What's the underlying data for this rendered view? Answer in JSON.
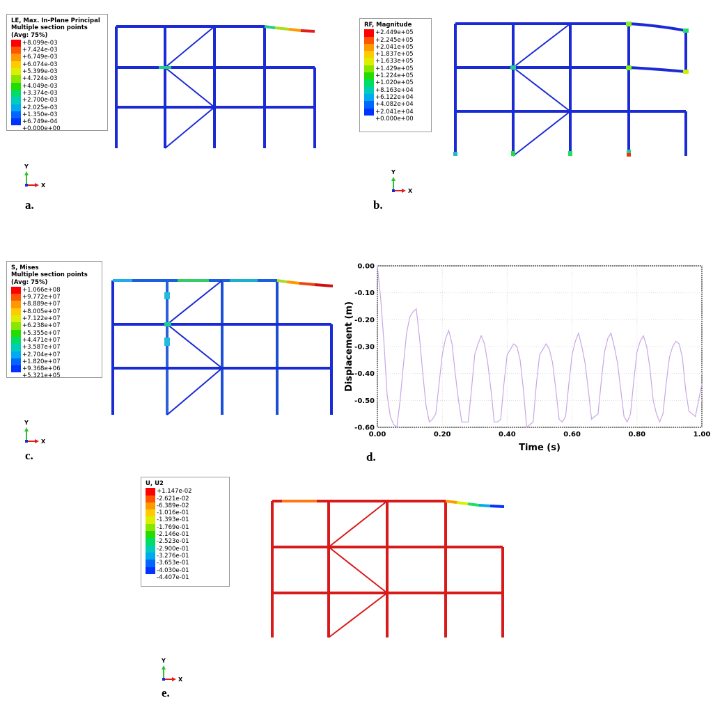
{
  "panels": {
    "a": {
      "label": "a.",
      "legend": {
        "title_lines": [
          "LE, Max. In-Plane Principal",
          "Multiple section points",
          "(Avg: 75%)"
        ],
        "values": [
          "+8.099e-03",
          "+7.424e-03",
          "+6.749e-03",
          "+6.074e-03",
          "+5.399e-03",
          "+4.724e-03",
          "+4.049e-03",
          "+3.374e-03",
          "+2.700e-03",
          "+2.025e-03",
          "+1.350e-03",
          "+6.749e-04",
          "+0.000e+00"
        ]
      },
      "triad": {
        "y": "Y",
        "x": "X"
      }
    },
    "b": {
      "label": "b.",
      "legend": {
        "title_lines": [
          "RF, Magnitude"
        ],
        "values": [
          "+2.449e+05",
          "+2.245e+05",
          "+2.041e+05",
          "+1.837e+05",
          "+1.633e+05",
          "+1.429e+05",
          "+1.224e+05",
          "+1.020e+05",
          "+8.163e+04",
          "+6.122e+04",
          "+4.082e+04",
          "+2.041e+04",
          "+0.000e+00"
        ]
      },
      "triad": {
        "y": "Y",
        "x": "X"
      }
    },
    "c": {
      "label": "c.",
      "legend": {
        "title_lines": [
          "S, Mises",
          "Multiple section points",
          "(Avg: 75%)"
        ],
        "values": [
          "+1.066e+08",
          "+9.772e+07",
          "+8.889e+07",
          "+8.005e+07",
          "+7.122e+07",
          "+6.238e+07",
          "+5.355e+07",
          "+4.471e+07",
          "+3.587e+07",
          "+2.704e+07",
          "+1.820e+07",
          "+9.368e+06",
          "+5.321e+05"
        ]
      },
      "triad": {
        "y": "Y",
        "x": "X"
      }
    },
    "d": {
      "label": "d."
    },
    "e": {
      "label": "e.",
      "legend": {
        "title_lines": [
          "U, U2"
        ],
        "values": [
          "+1.147e-02",
          "-2.621e-02",
          "-6.389e-02",
          "-1.016e-01",
          "-1.393e-01",
          "-1.769e-01",
          "-2.146e-01",
          "-2.523e-01",
          "-2.900e-01",
          "-3.276e-01",
          "-3.653e-01",
          "-4.030e-01",
          "-4.407e-01"
        ]
      },
      "triad": {
        "y": "Y",
        "x": "X"
      }
    }
  },
  "colors": {
    "contour_scale": [
      "#ff0000",
      "#ff5500",
      "#ff9900",
      "#ffcc00",
      "#ddee00",
      "#88e600",
      "#22dd00",
      "#00dd66",
      "#00ccbb",
      "#00aaee",
      "#0066ff",
      "#0033ff",
      "#0000ff"
    ],
    "member_low": "#1a2bd6",
    "member_high": "#d81a1a",
    "trace": "#c9a6e6",
    "triad_y": "#2fbf2f",
    "triad_x": "#e11a1a"
  },
  "chart_data": {
    "type": "line",
    "xlabel": "Time (s)",
    "ylabel": "Displacement (m)",
    "xlim": [
      0.0,
      1.0
    ],
    "ylim": [
      -0.6,
      0.0
    ],
    "x_ticks": [
      "0.00",
      "0.20",
      "0.40",
      "0.60",
      "0.80",
      "1.00"
    ],
    "y_ticks": [
      "0.00",
      "-0.10",
      "-0.20",
      "-0.30",
      "-0.40",
      "-0.50",
      "-0.60"
    ],
    "grid": true,
    "series": [
      {
        "x": [
          0.0,
          0.01,
          0.02,
          0.03,
          0.04,
          0.05,
          0.06,
          0.07,
          0.08,
          0.09,
          0.1,
          0.11,
          0.12,
          0.13,
          0.14,
          0.15,
          0.16,
          0.17,
          0.18,
          0.19,
          0.2,
          0.21,
          0.22,
          0.23,
          0.24,
          0.25,
          0.26,
          0.27,
          0.28,
          0.29,
          0.3,
          0.31,
          0.32,
          0.33,
          0.34,
          0.35,
          0.36,
          0.37,
          0.38,
          0.39,
          0.4,
          0.41,
          0.42,
          0.43,
          0.44,
          0.45,
          0.46,
          0.47,
          0.48,
          0.49,
          0.5,
          0.51,
          0.52,
          0.53,
          0.54,
          0.55,
          0.56,
          0.57,
          0.58,
          0.59,
          0.6,
          0.61,
          0.62,
          0.63,
          0.64,
          0.65,
          0.66,
          0.67,
          0.68,
          0.69,
          0.7,
          0.71,
          0.72,
          0.73,
          0.74,
          0.75,
          0.76,
          0.77,
          0.78,
          0.79,
          0.8,
          0.81,
          0.82,
          0.83,
          0.84,
          0.85,
          0.86,
          0.87,
          0.88,
          0.89,
          0.9,
          0.91,
          0.92,
          0.93,
          0.94,
          0.95,
          0.96,
          0.97,
          0.98,
          0.99,
          1.0
        ],
        "y": [
          0.0,
          -0.12,
          -0.28,
          -0.48,
          -0.56,
          -0.59,
          -0.6,
          -0.5,
          -0.37,
          -0.25,
          -0.19,
          -0.17,
          -0.16,
          -0.27,
          -0.4,
          -0.52,
          -0.58,
          -0.57,
          -0.55,
          -0.44,
          -0.33,
          -0.27,
          -0.24,
          -0.29,
          -0.4,
          -0.5,
          -0.58,
          -0.58,
          -0.58,
          -0.46,
          -0.33,
          -0.29,
          -0.26,
          -0.29,
          -0.36,
          -0.46,
          -0.58,
          -0.58,
          -0.57,
          -0.44,
          -0.33,
          -0.31,
          -0.29,
          -0.3,
          -0.35,
          -0.46,
          -0.6,
          -0.59,
          -0.58,
          -0.44,
          -0.33,
          -0.31,
          -0.29,
          -0.31,
          -0.36,
          -0.46,
          -0.57,
          -0.58,
          -0.56,
          -0.44,
          -0.33,
          -0.28,
          -0.25,
          -0.3,
          -0.36,
          -0.46,
          -0.57,
          -0.56,
          -0.55,
          -0.43,
          -0.32,
          -0.27,
          -0.25,
          -0.3,
          -0.36,
          -0.46,
          -0.56,
          -0.58,
          -0.55,
          -0.43,
          -0.32,
          -0.28,
          -0.26,
          -0.3,
          -0.38,
          -0.5,
          -0.55,
          -0.58,
          -0.55,
          -0.44,
          -0.34,
          -0.3,
          -0.28,
          -0.29,
          -0.34,
          -0.46,
          -0.54,
          -0.55,
          -0.56,
          -0.5,
          -0.44
        ]
      }
    ]
  }
}
